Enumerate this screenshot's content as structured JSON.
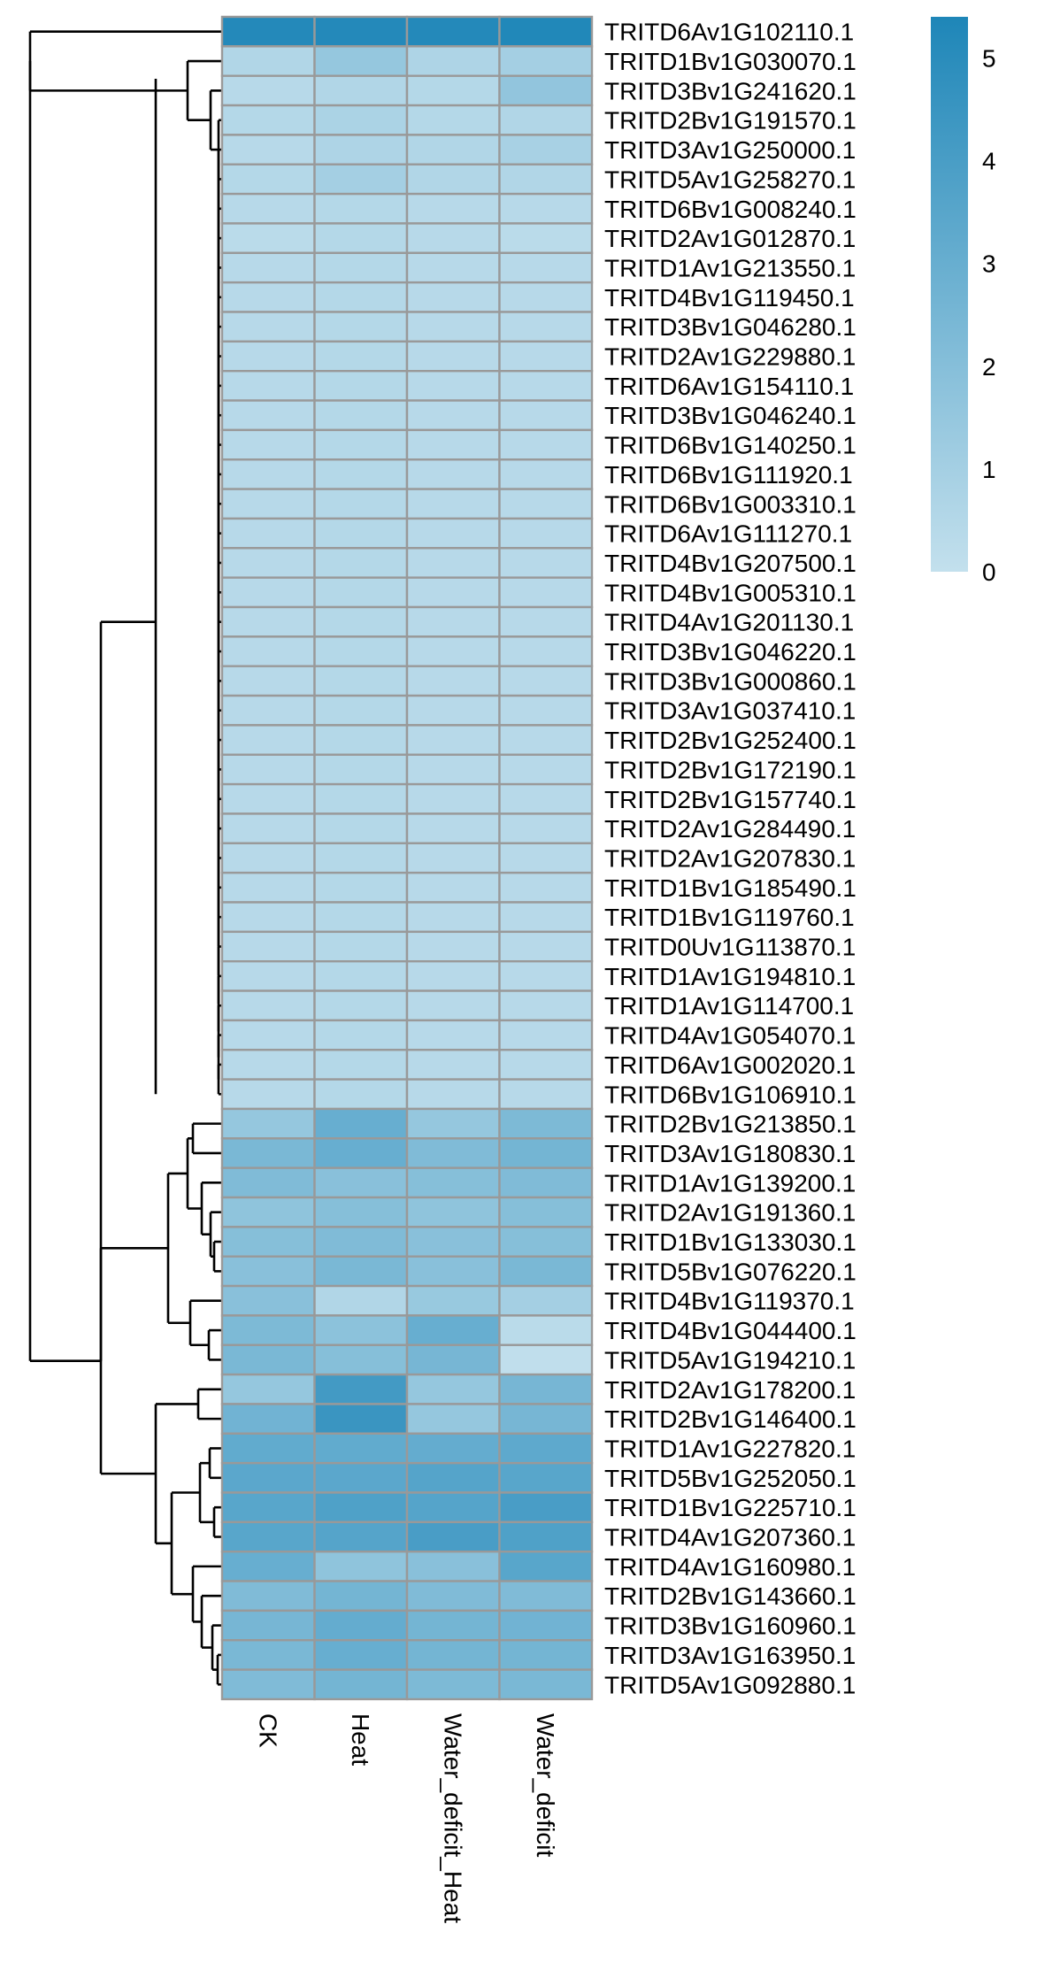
{
  "chart_data": {
    "type": "heatmap",
    "title": "",
    "columns": [
      "CK",
      "Heat",
      "Water_deficit_Heat",
      "Water_deficit"
    ],
    "rows": [
      "TRITD6Av1G102110.1",
      "TRITD1Bv1G030070.1",
      "TRITD3Bv1G241620.1",
      "TRITD2Bv1G191570.1",
      "TRITD3Av1G250000.1",
      "TRITD5Av1G258270.1",
      "TRITD6Bv1G008240.1",
      "TRITD2Av1G012870.1",
      "TRITD1Av1G213550.1",
      "TRITD4Bv1G119450.1",
      "TRITD3Bv1G046280.1",
      "TRITD2Av1G229880.1",
      "TRITD6Av1G154110.1",
      "TRITD3Bv1G046240.1",
      "TRITD6Bv1G140250.1",
      "TRITD6Bv1G111920.1",
      "TRITD6Bv1G003310.1",
      "TRITD6Av1G111270.1",
      "TRITD4Bv1G207500.1",
      "TRITD4Bv1G005310.1",
      "TRITD4Av1G201130.1",
      "TRITD3Bv1G046220.1",
      "TRITD3Bv1G000860.1",
      "TRITD3Av1G037410.1",
      "TRITD2Bv1G252400.1",
      "TRITD2Bv1G172190.1",
      "TRITD2Bv1G157740.1",
      "TRITD2Av1G284490.1",
      "TRITD2Av1G207830.1",
      "TRITD1Bv1G185490.1",
      "TRITD1Bv1G119760.1",
      "TRITD0Uv1G113870.1",
      "TRITD1Av1G194810.1",
      "TRITD1Av1G114700.1",
      "TRITD4Av1G054070.1",
      "TRITD6Av1G002020.1",
      "TRITD6Bv1G106910.1",
      "TRITD2Bv1G213850.1",
      "TRITD3Av1G180830.1",
      "TRITD1Av1G139200.1",
      "TRITD2Av1G191360.1",
      "TRITD1Bv1G133030.1",
      "TRITD5Bv1G076220.1",
      "TRITD4Bv1G119370.1",
      "TRITD4Bv1G044400.1",
      "TRITD5Av1G194210.1",
      "TRITD2Av1G178200.1",
      "TRITD2Bv1G146400.1",
      "TRITD1Av1G227820.1",
      "TRITD5Bv1G252050.1",
      "TRITD1Bv1G225710.1",
      "TRITD4Av1G207360.1",
      "TRITD4Av1G160980.1",
      "TRITD2Bv1G143660.1",
      "TRITD3Bv1G160960.1",
      "TRITD3Av1G163950.1",
      "TRITD5Av1G092880.1"
    ],
    "values": [
      [
        5.2,
        5.2,
        5.2,
        5.3
      ],
      [
        0.6,
        1.5,
        0.7,
        1.0
      ],
      [
        0.4,
        0.6,
        0.5,
        1.6
      ],
      [
        0.5,
        0.8,
        0.5,
        0.6
      ],
      [
        0.4,
        0.7,
        0.6,
        0.9
      ],
      [
        0.5,
        1.0,
        0.6,
        0.6
      ],
      [
        0.4,
        0.5,
        0.4,
        0.4
      ],
      [
        0.3,
        0.5,
        0.4,
        0.3
      ],
      [
        0.4,
        0.5,
        0.4,
        0.4
      ],
      [
        0.4,
        0.5,
        0.4,
        0.4
      ],
      [
        0.4,
        0.5,
        0.4,
        0.4
      ],
      [
        0.4,
        0.5,
        0.4,
        0.4
      ],
      [
        0.4,
        0.5,
        0.4,
        0.4
      ],
      [
        0.4,
        0.5,
        0.4,
        0.4
      ],
      [
        0.4,
        0.5,
        0.4,
        0.4
      ],
      [
        0.4,
        0.5,
        0.4,
        0.4
      ],
      [
        0.4,
        0.5,
        0.4,
        0.4
      ],
      [
        0.4,
        0.5,
        0.4,
        0.4
      ],
      [
        0.4,
        0.5,
        0.4,
        0.4
      ],
      [
        0.4,
        0.5,
        0.4,
        0.4
      ],
      [
        0.4,
        0.5,
        0.4,
        0.4
      ],
      [
        0.4,
        0.5,
        0.4,
        0.4
      ],
      [
        0.4,
        0.5,
        0.4,
        0.4
      ],
      [
        0.4,
        0.5,
        0.4,
        0.4
      ],
      [
        0.4,
        0.5,
        0.4,
        0.4
      ],
      [
        0.4,
        0.5,
        0.4,
        0.4
      ],
      [
        0.4,
        0.5,
        0.4,
        0.4
      ],
      [
        0.4,
        0.5,
        0.4,
        0.4
      ],
      [
        0.4,
        0.5,
        0.4,
        0.4
      ],
      [
        0.4,
        0.5,
        0.4,
        0.4
      ],
      [
        0.4,
        0.5,
        0.4,
        0.4
      ],
      [
        0.4,
        0.5,
        0.4,
        0.4
      ],
      [
        0.4,
        0.5,
        0.4,
        0.4
      ],
      [
        0.4,
        0.5,
        0.4,
        0.4
      ],
      [
        0.4,
        0.5,
        0.4,
        0.4
      ],
      [
        0.4,
        0.5,
        0.4,
        0.4
      ],
      [
        0.4,
        0.5,
        0.4,
        0.4
      ],
      [
        1.5,
        3.0,
        1.5,
        2.3
      ],
      [
        2.4,
        3.0,
        2.2,
        2.6
      ],
      [
        2.2,
        1.9,
        2.0,
        2.2
      ],
      [
        1.7,
        2.0,
        1.7,
        2.0
      ],
      [
        2.0,
        2.2,
        1.9,
        2.0
      ],
      [
        1.9,
        2.4,
        1.9,
        2.4
      ],
      [
        1.9,
        0.6,
        1.4,
        1.0
      ],
      [
        2.3,
        1.8,
        3.0,
        0.3
      ],
      [
        2.4,
        2.0,
        2.5,
        0.1
      ],
      [
        1.5,
        4.2,
        1.5,
        2.5
      ],
      [
        2.7,
        4.5,
        1.5,
        2.5
      ],
      [
        3.2,
        3.2,
        3.1,
        3.3
      ],
      [
        3.4,
        3.4,
        3.6,
        3.5
      ],
      [
        3.5,
        3.8,
        3.6,
        4.0
      ],
      [
        3.5,
        3.6,
        4.0,
        3.8
      ],
      [
        3.0,
        1.7,
        1.9,
        3.5
      ],
      [
        2.2,
        2.6,
        2.2,
        2.2
      ],
      [
        2.5,
        3.1,
        2.6,
        2.7
      ],
      [
        2.4,
        3.0,
        2.6,
        2.6
      ],
      [
        2.2,
        2.6,
        2.3,
        2.4
      ]
    ],
    "color_scale": {
      "min": 0,
      "max": 5.4,
      "low_color": "#c3e0ed",
      "high_color": "#1e86b8",
      "ticks": [
        0,
        1,
        2,
        3,
        4,
        5
      ],
      "legend_placement": "top-right"
    },
    "row_dendrogram": true,
    "grid": true,
    "colors": {
      "cell_border": "#999999",
      "dendrogram": "#000000"
    }
  }
}
